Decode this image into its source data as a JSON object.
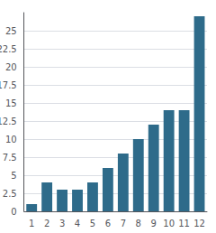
{
  "chart_data": {
    "type": "bar",
    "categories": [
      "1",
      "2",
      "3",
      "4",
      "5",
      "6",
      "7",
      "8",
      "9",
      "10",
      "11",
      "12"
    ],
    "values": [
      1,
      4,
      3,
      3,
      4,
      6,
      8,
      10,
      12,
      14,
      14,
      27
    ],
    "color": "#2e6b8a",
    "ylim": [
      0,
      27.5
    ],
    "yticks": [
      0,
      2.5,
      5,
      7.5,
      10,
      12.5,
      15,
      17.5,
      20,
      22.5,
      25
    ],
    "grid": true
  }
}
